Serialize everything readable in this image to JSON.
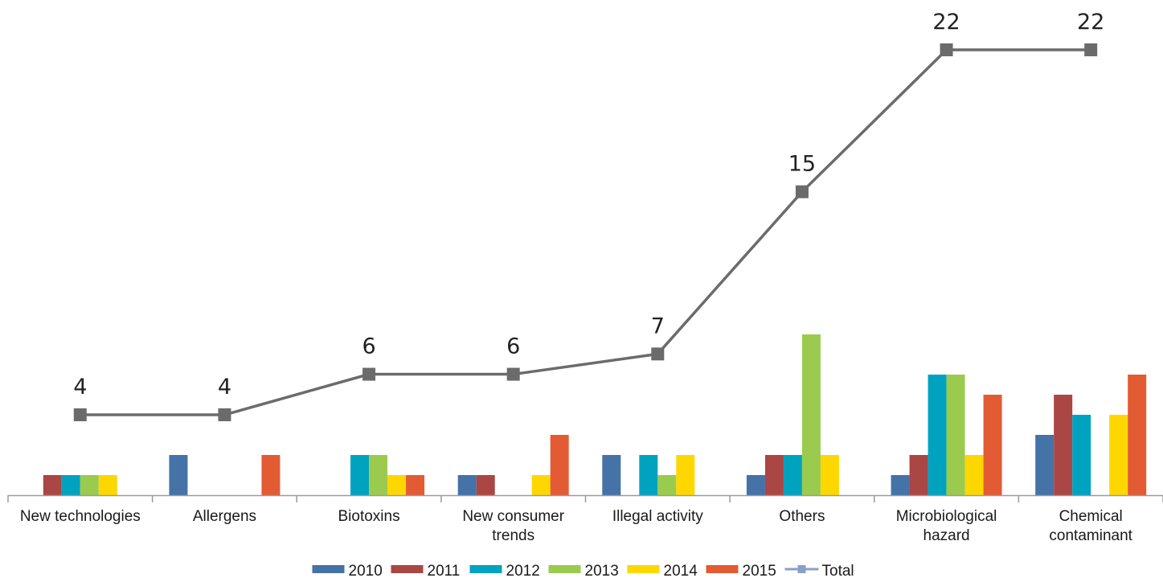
{
  "chart_data": {
    "type": "bar",
    "categories": [
      [
        "New technologies"
      ],
      [
        "Allergens"
      ],
      [
        "Biotoxins"
      ],
      [
        "New consumer",
        "trends"
      ],
      [
        "Illegal activity"
      ],
      [
        "Others"
      ],
      [
        "Microbiological",
        "hazard"
      ],
      [
        "Chemical",
        "contaminant"
      ]
    ],
    "series": [
      {
        "name": "2010",
        "color": "#4572A7",
        "values": [
          0,
          2,
          0,
          1,
          2,
          1,
          1,
          3
        ]
      },
      {
        "name": "2011",
        "color": "#AA4643",
        "values": [
          1,
          0,
          0,
          1,
          0,
          2,
          2,
          5
        ]
      },
      {
        "name": "2012",
        "color": "#00A3BF",
        "values": [
          1,
          0,
          2,
          0,
          2,
          2,
          6,
          4
        ]
      },
      {
        "name": "2013",
        "color": "#9BCB4E",
        "values": [
          1,
          0,
          2,
          0,
          1,
          8,
          6,
          0
        ]
      },
      {
        "name": "2014",
        "color": "#FFD700",
        "values": [
          1,
          0,
          1,
          1,
          2,
          2,
          2,
          4
        ]
      },
      {
        "name": "2015",
        "color": "#E35B33",
        "values": [
          0,
          2,
          1,
          3,
          0,
          0,
          5,
          6
        ]
      }
    ],
    "line_series": {
      "name": "Total",
      "type": "line",
      "color": "#6B6B6B",
      "values": [
        4,
        4,
        6,
        6,
        7,
        15,
        22,
        22
      ]
    },
    "ylim": [
      0,
      24
    ],
    "legend_position": "bottom",
    "grid": false
  }
}
